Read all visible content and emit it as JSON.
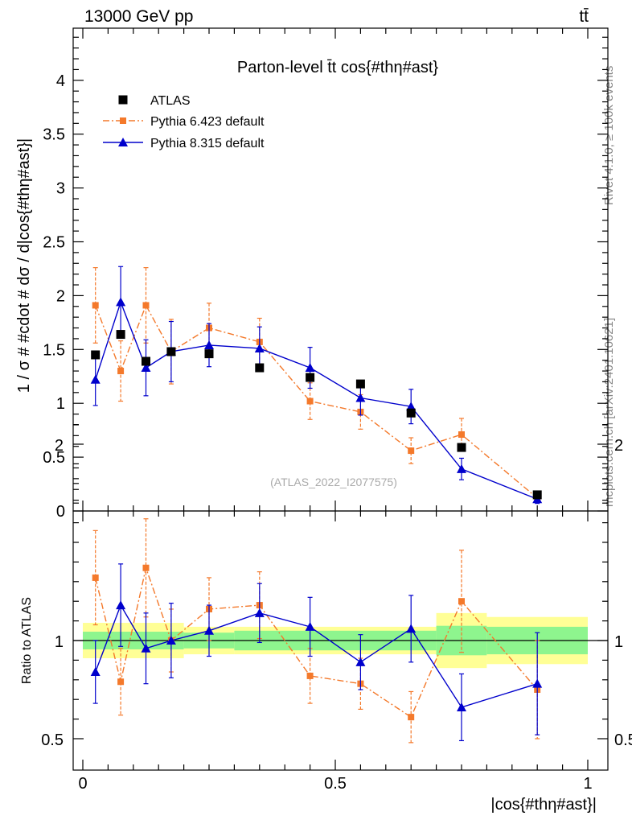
{
  "header": {
    "energy": "13000 GeV pp",
    "process": "tt̄"
  },
  "side_labels": {
    "rivet": "Rivet 4.1.0, ≥ 100k events",
    "mcplots": "mcplots.cern.ch [arXiv:2401.10621]"
  },
  "chart_data": [
    {
      "type": "scatter",
      "panel": "main",
      "title": "Parton-level t̄t cos{#thη#ast}",
      "ylabel": "1 / σ # #cdot # dσ / d|cos{#thη#ast}|",
      "xlim": [
        0,
        1
      ],
      "ylim": [
        0,
        4.5
      ],
      "yticks": [
        "0",
        "0.5",
        "1",
        "1.5",
        "2",
        "2.5",
        "3",
        "3.5",
        "4"
      ],
      "watermark": "(ATLAS_2022_I2077575)",
      "legend_position": "top-left",
      "series": [
        {
          "name": "ATLAS",
          "color": "#000000",
          "style": "points",
          "x": [
            0.025,
            0.075,
            0.125,
            0.175,
            0.25,
            0.35,
            0.45,
            0.55,
            0.65,
            0.75,
            0.9
          ],
          "y": [
            1.45,
            1.64,
            1.39,
            1.48,
            1.46,
            1.33,
            1.24,
            1.18,
            0.91,
            0.59,
            0.15
          ],
          "err": [
            0.03,
            0.03,
            0.03,
            0.03,
            0.02,
            0.02,
            0.02,
            0.02,
            0.02,
            0.02,
            0.01
          ]
        },
        {
          "name": "Pythia 6.423 default",
          "color": "#f4792b",
          "style": "dashdot",
          "x": [
            0.025,
            0.075,
            0.125,
            0.175,
            0.25,
            0.35,
            0.45,
            0.55,
            0.65,
            0.75,
            0.9
          ],
          "y": [
            1.91,
            1.3,
            1.91,
            1.48,
            1.7,
            1.57,
            1.02,
            0.92,
            0.56,
            0.71,
            0.12
          ],
          "err": [
            0.35,
            0.28,
            0.35,
            0.3,
            0.23,
            0.22,
            0.17,
            0.16,
            0.12,
            0.15,
            0.04
          ]
        },
        {
          "name": "Pythia 8.315 default",
          "color": "#0000cc",
          "style": "solid",
          "x": [
            0.025,
            0.075,
            0.125,
            0.175,
            0.25,
            0.35,
            0.45,
            0.55,
            0.65,
            0.75,
            0.9
          ],
          "y": [
            1.22,
            1.94,
            1.33,
            1.48,
            1.54,
            1.51,
            1.33,
            1.05,
            0.97,
            0.39,
            0.11
          ],
          "err": [
            0.24,
            0.33,
            0.26,
            0.28,
            0.2,
            0.2,
            0.19,
            0.16,
            0.16,
            0.1,
            0.04
          ]
        }
      ]
    },
    {
      "type": "scatter",
      "panel": "ratio",
      "ylabel": "Ratio to ATLAS",
      "xlabel": "|cos{#thη#ast}|",
      "xlim": [
        0,
        1
      ],
      "ylim": [
        0.42,
        2.25
      ],
      "yticks": [
        "0.5",
        "1",
        "2"
      ],
      "xticks": [
        "0",
        "0.5",
        "1"
      ],
      "bands": [
        {
          "x0": 0.0,
          "x1": 0.2,
          "inner": [
            0.955,
            1.045
          ],
          "outer": [
            0.91,
            1.09
          ]
        },
        {
          "x0": 0.2,
          "x1": 0.3,
          "inner": [
            0.96,
            1.04
          ],
          "outer": [
            0.93,
            1.07
          ]
        },
        {
          "x0": 0.3,
          "x1": 0.7,
          "inner": [
            0.95,
            1.05
          ],
          "outer": [
            0.93,
            1.07
          ]
        },
        {
          "x0": 0.7,
          "x1": 0.8,
          "inner": [
            0.925,
            1.075
          ],
          "outer": [
            0.86,
            1.14
          ]
        },
        {
          "x0": 0.8,
          "x1": 1.0,
          "inner": [
            0.93,
            1.07
          ],
          "outer": [
            0.88,
            1.12
          ]
        }
      ],
      "band_colors": {
        "inner": "#8ef58e",
        "outer": "#ffff96"
      },
      "series": [
        {
          "name": "Pythia 6.423 default",
          "color": "#f4792b",
          "style": "dashdot",
          "x": [
            0.025,
            0.075,
            0.125,
            0.175,
            0.25,
            0.35,
            0.45,
            0.55,
            0.65,
            0.75,
            0.9
          ],
          "y": [
            1.32,
            0.79,
            1.37,
            1.0,
            1.16,
            1.18,
            0.82,
            0.78,
            0.61,
            1.2,
            0.75
          ],
          "err": [
            0.24,
            0.17,
            0.25,
            0.16,
            0.16,
            0.17,
            0.14,
            0.13,
            0.13,
            0.26,
            0.25
          ]
        },
        {
          "name": "Pythia 8.315 default",
          "color": "#0000cc",
          "style": "solid",
          "x": [
            0.025,
            0.075,
            0.125,
            0.175,
            0.25,
            0.35,
            0.45,
            0.55,
            0.65,
            0.75,
            0.9
          ],
          "y": [
            0.84,
            1.18,
            0.96,
            1.0,
            1.05,
            1.14,
            1.07,
            0.89,
            1.06,
            0.66,
            0.78
          ],
          "err": [
            0.16,
            0.21,
            0.18,
            0.19,
            0.13,
            0.15,
            0.15,
            0.14,
            0.17,
            0.17,
            0.26
          ]
        }
      ]
    }
  ]
}
